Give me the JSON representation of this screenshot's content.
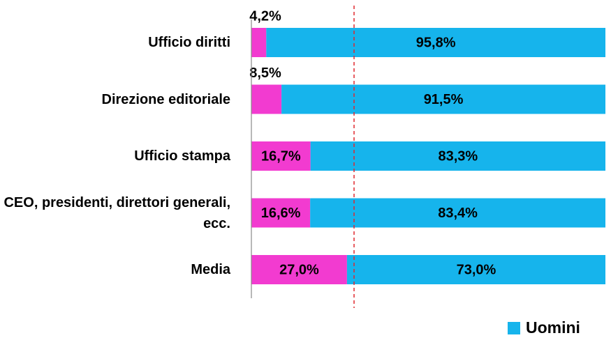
{
  "chart_data": {
    "type": "stacked_bar_horizontal",
    "categories": [
      "Ufficio diritti",
      "Direzione editoriale",
      "Ufficio stampa",
      "CEO, presidenti, direttori generali, ecc.",
      "Media"
    ],
    "series": [
      {
        "color": "#f23bd0",
        "values": [
          4.2,
          8.5,
          16.7,
          16.6,
          27.0
        ],
        "value_labels": [
          "4,2%",
          "8,5%",
          "16,7%",
          "16,6%",
          "27,0%"
        ]
      },
      {
        "name": "Uomini",
        "color": "#16b4ec",
        "values": [
          95.8,
          91.5,
          83.3,
          83.4,
          73.0
        ],
        "value_labels": [
          "95,8%",
          "91,5%",
          "83,3%",
          "83,4%",
          "73,0%"
        ]
      }
    ],
    "xlim": [
      0,
      100
    ],
    "reference_line": {
      "value": 29,
      "color": "#e0282e"
    },
    "legend": "bottom-right"
  }
}
